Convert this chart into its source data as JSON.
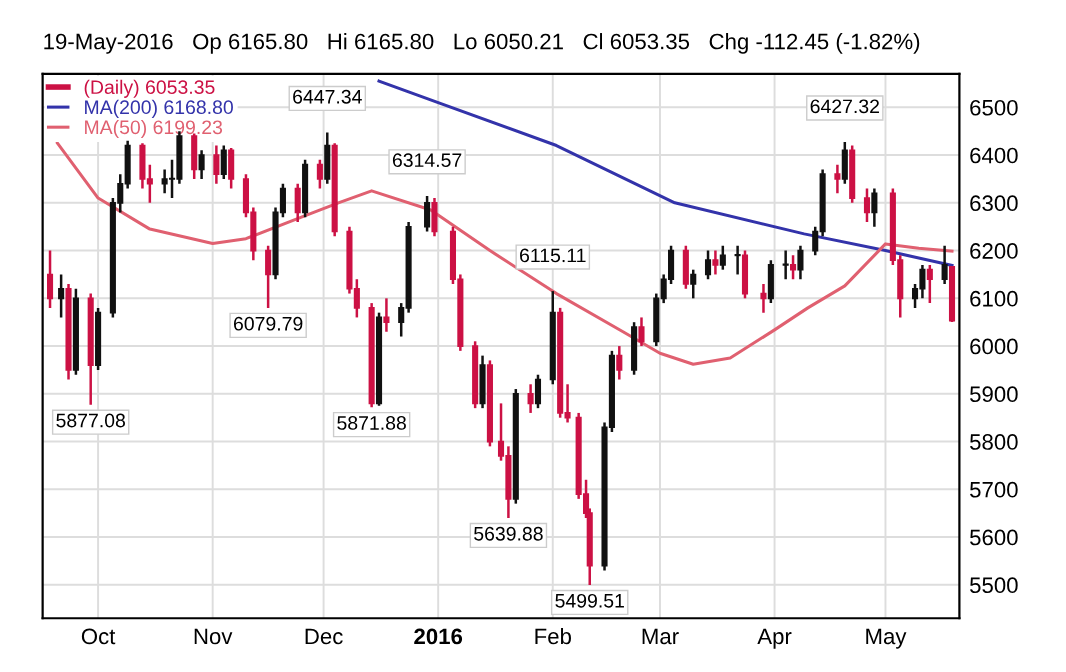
{
  "chart_data": {
    "type": "candlestick",
    "title": "19-May-2016   Op 6165.80   Hi 6165.80   Lo 6050.21   Cl 6053.35   Chg -112.45 (-1.82%)",
    "xlim": [
      "2015-09-16",
      "2016-05-21"
    ],
    "ylim": [
      5430,
      6570
    ],
    "yticks": [
      5500,
      5600,
      5700,
      5800,
      5900,
      6000,
      6100,
      6200,
      6300,
      6400,
      6500
    ],
    "xticks": [
      {
        "value": "2015-10-01",
        "label": "Oct"
      },
      {
        "value": "2015-11-01",
        "label": "Nov"
      },
      {
        "value": "2015-12-01",
        "label": "Dec"
      },
      {
        "value": "2016-01-01",
        "label": "2016"
      },
      {
        "value": "2016-02-01",
        "label": "Feb"
      },
      {
        "value": "2016-03-01",
        "label": "Mar"
      },
      {
        "value": "2016-04-01",
        "label": "Apr"
      },
      {
        "value": "2016-05-01",
        "label": "May"
      }
    ],
    "grid": true,
    "legend": "top left",
    "series": [
      {
        "name": "(Daily) 6053.35",
        "colors": [
          "#cc1144",
          "#111111",
          "#cc1144",
          "#111111",
          "#cc1144",
          "#111111",
          "#111111",
          "#111111",
          "#111111",
          "#cc1144",
          "#cc1144",
          "#111111",
          "#111111",
          "#111111",
          "#cc1144",
          "#111111",
          "#cc1144",
          "#111111",
          "#cc1144",
          "#cc1144",
          "#cc1144",
          "#cc1144",
          "#111111",
          "#111111",
          "#cc1144",
          "#111111",
          "#cc1144",
          "#111111",
          "#cc1144",
          "#cc1144",
          "#cc1144",
          "#cc1144",
          "#111111",
          "#cc1144",
          "#111111",
          "#111111",
          "#111111",
          "#cc1144",
          "#cc1144",
          "#cc1144",
          "#cc1144",
          "#111111",
          "#cc1144",
          "#cc1144",
          "#cc1144",
          "#111111",
          "#cc1144",
          "#111111",
          "#111111",
          "#cc1144",
          "#cc1144",
          "#cc1144",
          "#cc1144",
          "#cc1144",
          "#111111",
          "#111111",
          "#cc1144",
          "#111111",
          "#cc1144",
          "#111111",
          "#111111",
          "#111111",
          "#cc1144",
          "#111111",
          "#111111",
          "#cc1144",
          "#111111",
          "#111111",
          "#cc1144",
          "#cc1144",
          "#111111",
          "#111111",
          "#cc1144",
          "#111111",
          "#111111",
          "#111111",
          "#cc1144",
          "#111111",
          "#cc1144",
          "#cc1144",
          "#111111",
          "#cc1144",
          "#cc1144",
          "#111111",
          "#111111",
          "#cc1144",
          "#111111",
          "#cc1144"
        ],
        "x": [
          "2015-09-18",
          "2015-09-21",
          "2015-09-23",
          "2015-09-25",
          "2015-09-29",
          "2015-10-01",
          "2015-10-05",
          "2015-10-07",
          "2015-10-09",
          "2015-10-13",
          "2015-10-15",
          "2015-10-19",
          "2015-10-21",
          "2015-10-23",
          "2015-10-27",
          "2015-10-29",
          "2015-11-02",
          "2015-11-04",
          "2015-11-06",
          "2015-11-10",
          "2015-11-12",
          "2015-11-16",
          "2015-11-18",
          "2015-11-20",
          "2015-11-24",
          "2015-11-26",
          "2015-11-30",
          "2015-12-02",
          "2015-12-04",
          "2015-12-08",
          "2015-12-10",
          "2015-12-14",
          "2015-12-16",
          "2015-12-18",
          "2015-12-22",
          "2015-12-24",
          "2015-12-29",
          "2015-12-31",
          "2016-01-05",
          "2016-01-07",
          "2016-01-11",
          "2016-01-13",
          "2016-01-15",
          "2016-01-18",
          "2016-01-20",
          "2016-01-22",
          "2016-01-26",
          "2016-01-28",
          "2016-02-01",
          "2016-02-03",
          "2016-02-05",
          "2016-02-08",
          "2016-02-10",
          "2016-02-11",
          "2016-02-15",
          "2016-02-17",
          "2016-02-19",
          "2016-02-23",
          "2016-02-25",
          "2016-02-29",
          "2016-03-02",
          "2016-03-04",
          "2016-03-08",
          "2016-03-10",
          "2016-03-14",
          "2016-03-16",
          "2016-03-18",
          "2016-03-22",
          "2016-03-24",
          "2016-03-29",
          "2016-03-31",
          "2016-04-04",
          "2016-04-06",
          "2016-04-08",
          "2016-04-12",
          "2016-04-14",
          "2016-04-18",
          "2016-04-20",
          "2016-04-22",
          "2016-04-26",
          "2016-04-28",
          "2016-05-03",
          "2016-05-05",
          "2016-05-09",
          "2016-05-11",
          "2016-05-13",
          "2016-05-17",
          "2016-05-19"
        ],
        "ohlc": [
          [
            6150,
            6200,
            6080,
            6100
          ],
          [
            6100,
            6150,
            6060,
            6120
          ],
          [
            6120,
            6130,
            5930,
            5950
          ],
          [
            5950,
            6120,
            5940,
            6100
          ],
          [
            6100,
            6110,
            5877.08,
            5960
          ],
          [
            5960,
            6080,
            5950,
            6070
          ],
          [
            6070,
            6310,
            6060,
            6300
          ],
          [
            6300,
            6360,
            6280,
            6340
          ],
          [
            6340,
            6430,
            6330,
            6420
          ],
          [
            6420,
            6425,
            6330,
            6350
          ],
          [
            6350,
            6380,
            6300,
            6340
          ],
          [
            6340,
            6370,
            6320,
            6350
          ],
          [
            6350,
            6390,
            6310,
            6350
          ],
          [
            6350,
            6450,
            6340,
            6440
          ],
          [
            6440,
            6445,
            6350,
            6370
          ],
          [
            6370,
            6410,
            6350,
            6400
          ],
          [
            6400,
            6420,
            6340,
            6360
          ],
          [
            6360,
            6420,
            6350,
            6410
          ],
          [
            6410,
            6415,
            6330,
            6350
          ],
          [
            6350,
            6360,
            6270,
            6280
          ],
          [
            6280,
            6290,
            6180,
            6200
          ],
          [
            6200,
            6210,
            6079.79,
            6150
          ],
          [
            6150,
            6290,
            6140,
            6280
          ],
          [
            6280,
            6340,
            6270,
            6330
          ],
          [
            6330,
            6340,
            6260,
            6280
          ],
          [
            6280,
            6390,
            6270,
            6380
          ],
          [
            6380,
            6390,
            6330,
            6350
          ],
          [
            6350,
            6447.34,
            6340,
            6420
          ],
          [
            6420,
            6425,
            6230,
            6240
          ],
          [
            6240,
            6250,
            6110,
            6120
          ],
          [
            6120,
            6140,
            6060,
            6080
          ],
          [
            6080,
            6090,
            5871.88,
            5880
          ],
          [
            5880,
            6070,
            5875,
            6060
          ],
          [
            6060,
            6100,
            6030,
            6050
          ],
          [
            6050,
            6090,
            6020,
            6080
          ],
          [
            6080,
            6260,
            6070,
            6250
          ],
          [
            6250,
            6314.57,
            6240,
            6300
          ],
          [
            6300,
            6310,
            6230,
            6240
          ],
          [
            6240,
            6250,
            6130,
            6140
          ],
          [
            6140,
            6150,
            5990,
            6000
          ],
          [
            6000,
            6010,
            5870,
            5880
          ],
          [
            5880,
            5980,
            5870,
            5960
          ],
          [
            5960,
            5970,
            5790,
            5800
          ],
          [
            5800,
            5880,
            5760,
            5770
          ],
          [
            5770,
            5790,
            5639.88,
            5680
          ],
          [
            5680,
            5910,
            5670,
            5900
          ],
          [
            5900,
            5920,
            5860,
            5880
          ],
          [
            5880,
            5940,
            5870,
            5930
          ],
          [
            5930,
            6115.11,
            5920,
            6070
          ],
          [
            6070,
            6080,
            5850,
            5860
          ],
          [
            5860,
            5920,
            5840,
            5850
          ],
          [
            5850,
            5860,
            5680,
            5690
          ],
          [
            5690,
            5720,
            5640,
            5650
          ],
          [
            5650,
            5660,
            5499.51,
            5540
          ],
          [
            5540,
            5840,
            5530,
            5830
          ],
          [
            5830,
            5990,
            5820,
            5980
          ],
          [
            5980,
            6000,
            5930,
            5950
          ],
          [
            5950,
            6050,
            5940,
            6040
          ],
          [
            6040,
            6060,
            6000,
            6010
          ],
          [
            6010,
            6110,
            6000,
            6100
          ],
          [
            6100,
            6150,
            6090,
            6140
          ],
          [
            6140,
            6210,
            6130,
            6200
          ],
          [
            6200,
            6210,
            6120,
            6130
          ],
          [
            6130,
            6160,
            6100,
            6150
          ],
          [
            6150,
            6200,
            6140,
            6180
          ],
          [
            6180,
            6200,
            6150,
            6170
          ],
          [
            6170,
            6210,
            6160,
            6190
          ],
          [
            6190,
            6210,
            6150,
            6190
          ],
          [
            6190,
            6200,
            6100,
            6110
          ],
          [
            6110,
            6130,
            6070,
            6100
          ],
          [
            6100,
            6180,
            6090,
            6170
          ],
          [
            6170,
            6200,
            6140,
            6170
          ],
          [
            6170,
            6190,
            6140,
            6160
          ],
          [
            6160,
            6210,
            6140,
            6200
          ],
          [
            6200,
            6250,
            6190,
            6240
          ],
          [
            6240,
            6370,
            6230,
            6360
          ],
          [
            6360,
            6380,
            6320,
            6350
          ],
          [
            6350,
            6427.32,
            6340,
            6410
          ],
          [
            6410,
            6420,
            6300,
            6310
          ],
          [
            6310,
            6330,
            6260,
            6280
          ],
          [
            6280,
            6330,
            6250,
            6320
          ],
          [
            6320,
            6330,
            6170,
            6180
          ],
          [
            6180,
            6190,
            6060,
            6100
          ],
          [
            6100,
            6130,
            6080,
            6120
          ],
          [
            6120,
            6170,
            6100,
            6160
          ],
          [
            6160,
            6170,
            6090,
            6140
          ],
          [
            6140,
            6210,
            6130,
            6170
          ],
          [
            6165.8,
            6165.8,
            6050.21,
            6053.35
          ]
        ]
      },
      {
        "name": "MA(200) 6168.80",
        "type": "line",
        "color": "#3333aa",
        "x": [
          "2015-12-16",
          "2016-01-01",
          "2016-02-02",
          "2016-03-05",
          "2016-04-09",
          "2016-05-01",
          "2016-05-19"
        ],
        "values": [
          6555,
          6510,
          6420,
          6300,
          6235,
          6200,
          6169
        ]
      },
      {
        "name": "MA(50) 6199.23",
        "type": "line",
        "color": "#e06070",
        "x": [
          "2015-09-20",
          "2015-10-01",
          "2015-10-15",
          "2015-11-01",
          "2015-11-10",
          "2015-11-25",
          "2015-12-05",
          "2015-12-14",
          "2015-12-30",
          "2016-01-15",
          "2016-02-02",
          "2016-02-20",
          "2016-03-01",
          "2016-03-10",
          "2016-03-20",
          "2016-04-01",
          "2016-04-10",
          "2016-04-20",
          "2016-05-01",
          "2016-05-10",
          "2016-05-19"
        ],
        "values": [
          6425,
          6310,
          6245,
          6215,
          6225,
          6270,
          6300,
          6325,
          6285,
          6200,
          6110,
          6030,
          5985,
          5962,
          5975,
          6034,
          6080,
          6126,
          6214,
          6205,
          6199
        ]
      }
    ],
    "annotations": [
      {
        "text": "5877.08",
        "x": "2015-09-29",
        "y": 5877.08
      },
      {
        "text": "6079.79",
        "x": "2015-11-16",
        "y": 6079.79
      },
      {
        "text": "6447.34",
        "x": "2015-12-02",
        "y": 6447.34
      },
      {
        "text": "5871.88",
        "x": "2015-12-14",
        "y": 5871.88
      },
      {
        "text": "6314.57",
        "x": "2015-12-29",
        "y": 6314.57
      },
      {
        "text": "5639.88",
        "x": "2016-01-20",
        "y": 5639.88
      },
      {
        "text": "6115.11",
        "x": "2016-02-01",
        "y": 6115.11
      },
      {
        "text": "5499.51",
        "x": "2016-02-11",
        "y": 5499.51
      },
      {
        "text": "6427.32",
        "x": "2016-04-20",
        "y": 6427.32
      }
    ]
  }
}
